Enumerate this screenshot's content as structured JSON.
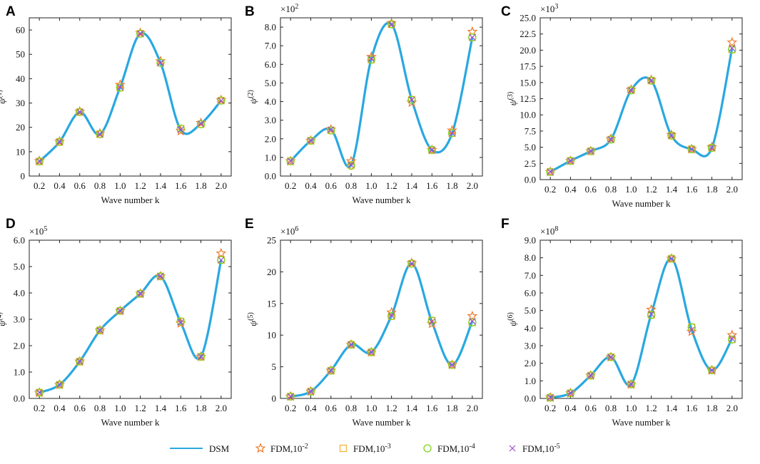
{
  "figure": {
    "legend": [
      {
        "key": "dsm",
        "label": "DSM",
        "symbol": "line",
        "color": "#29a8e0"
      },
      {
        "key": "fdm2",
        "label_base": "FDM,10",
        "label_exp": "-2",
        "symbol": "star",
        "color": "#f07a2a"
      },
      {
        "key": "fdm3",
        "label_base": "FDM,10",
        "label_exp": "-3",
        "symbol": "square",
        "color": "#f2b134"
      },
      {
        "key": "fdm4",
        "label_base": "FDM,10",
        "label_exp": "-4",
        "symbol": "circle",
        "color": "#7ed321"
      },
      {
        "key": "fdm5",
        "label_base": "FDM,10",
        "label_exp": "-5",
        "symbol": "x",
        "color": "#9b4fd0"
      }
    ]
  },
  "chart_data": [
    {
      "panel": "A",
      "type": "line",
      "title": "",
      "xlabel": "Wave number k",
      "ylabel_base": "ψ",
      "ylabel_sup": "(1)",
      "multiplier_base": "",
      "multiplier_exp": "",
      "x": [
        0.2,
        0.4,
        0.6,
        0.8,
        1.0,
        1.2,
        1.4,
        1.6,
        1.8,
        2.0
      ],
      "xlim": [
        0.1,
        2.1
      ],
      "ylim": [
        0,
        65
      ],
      "xticks": [
        0.2,
        0.4,
        0.6,
        0.8,
        1.0,
        1.2,
        1.4,
        1.6,
        1.8,
        2.0
      ],
      "xtick_labels": [
        "0.2",
        "0.4",
        "0.6",
        "0.8",
        "1.0",
        "1.2",
        "1.4",
        "1.6",
        "1.8",
        "2.0"
      ],
      "yticks": [
        0,
        10,
        20,
        30,
        40,
        50,
        60
      ],
      "ytick_labels": [
        "0",
        "10",
        "20",
        "30",
        "40",
        "50",
        "60"
      ],
      "series": [
        {
          "name": "DSM",
          "values": [
            6,
            14,
            26.3,
            17.2,
            36.5,
            58.5,
            46.5,
            19,
            21.5,
            31
          ]
        },
        {
          "name": "FDM,10^-2",
          "values": [
            6.2,
            14.2,
            26.5,
            17.5,
            37.5,
            58.8,
            47.2,
            18.5,
            21.8,
            31.2
          ]
        },
        {
          "name": "FDM,10^-3",
          "values": [
            6,
            14,
            26.3,
            17.2,
            36.3,
            58.5,
            46.5,
            19.5,
            21.3,
            31
          ]
        },
        {
          "name": "FDM,10^-4",
          "values": [
            6,
            14,
            26.3,
            17.2,
            36.3,
            58.5,
            46.5,
            19.5,
            21.3,
            31
          ]
        },
        {
          "name": "FDM,10^-5",
          "values": [
            6,
            14,
            26.3,
            17.2,
            36.5,
            58.5,
            46.5,
            19,
            21.5,
            31
          ]
        }
      ]
    },
    {
      "panel": "B",
      "type": "line",
      "title": "",
      "xlabel": "Wave number k",
      "ylabel_base": "ψ",
      "ylabel_sup": "(2)",
      "multiplier_base": "×10",
      "multiplier_exp": "2",
      "x": [
        0.2,
        0.4,
        0.6,
        0.8,
        1.0,
        1.2,
        1.4,
        1.6,
        1.8,
        2.0
      ],
      "xlim": [
        0.1,
        2.1
      ],
      "ylim": [
        0,
        8.5
      ],
      "xticks": [
        0.2,
        0.4,
        0.6,
        0.8,
        1.0,
        1.2,
        1.4,
        1.6,
        1.8,
        2.0
      ],
      "xtick_labels": [
        "0.2",
        "0.4",
        "0.6",
        "0.8",
        "1.0",
        "1.2",
        "1.4",
        "1.6",
        "1.8",
        "2.0"
      ],
      "yticks": [
        0,
        1,
        2,
        3,
        4,
        5,
        6,
        7,
        8
      ],
      "ytick_labels": [
        "0.0",
        "1.0",
        "2.0",
        "3.0",
        "4.0",
        "5.0",
        "6.0",
        "7.0",
        "8.0"
      ],
      "series": [
        {
          "name": "DSM",
          "values": [
            0.8,
            1.9,
            2.5,
            0.6,
            6.3,
            8.15,
            4.1,
            1.4,
            2.3,
            7.45
          ]
        },
        {
          "name": "FDM,10^-2",
          "values": [
            0.8,
            1.9,
            2.5,
            0.8,
            6.4,
            8.2,
            3.95,
            1.4,
            2.45,
            7.75
          ]
        },
        {
          "name": "FDM,10^-3",
          "values": [
            0.8,
            1.9,
            2.45,
            0.6,
            6.25,
            8.15,
            4.1,
            1.4,
            2.3,
            7.45
          ]
        },
        {
          "name": "FDM,10^-4",
          "values": [
            0.8,
            1.9,
            2.45,
            0.55,
            6.25,
            8.15,
            4.1,
            1.4,
            2.3,
            7.45
          ]
        },
        {
          "name": "FDM,10^-5",
          "values": [
            0.8,
            1.9,
            2.5,
            0.6,
            6.3,
            8.15,
            4.1,
            1.4,
            2.3,
            7.45
          ]
        }
      ]
    },
    {
      "panel": "C",
      "type": "line",
      "title": "",
      "xlabel": "Wave number k",
      "ylabel_base": "ψ",
      "ylabel_sup": "(3)",
      "multiplier_base": "×10",
      "multiplier_exp": "3",
      "x": [
        0.2,
        0.4,
        0.6,
        0.8,
        1.0,
        1.2,
        1.4,
        1.6,
        1.8,
        2.0
      ],
      "xlim": [
        0.1,
        2.1
      ],
      "ylim": [
        0,
        25
      ],
      "xticks": [
        0.2,
        0.4,
        0.6,
        0.8,
        1.0,
        1.2,
        1.4,
        1.6,
        1.8,
        2.0
      ],
      "xtick_labels": [
        "0.2",
        "0.4",
        "0.6",
        "0.8",
        "1.0",
        "1.2",
        "1.4",
        "1.6",
        "1.8",
        "2.0"
      ],
      "yticks": [
        0,
        2.5,
        5,
        7.5,
        10,
        12.5,
        15,
        17.5,
        20,
        22.5,
        25
      ],
      "ytick_labels": [
        "0.0",
        "2.5",
        "5.0",
        "7.5",
        "10.0",
        "12.5",
        "15.0",
        "17.5",
        "20.0",
        "22.5",
        "25.0"
      ],
      "series": [
        {
          "name": "DSM",
          "values": [
            1.2,
            2.9,
            4.4,
            6.2,
            13.8,
            15.3,
            6.8,
            4.7,
            4.9,
            20.3
          ]
        },
        {
          "name": "FDM,10^-2",
          "values": [
            1.2,
            2.9,
            4.4,
            6.3,
            13.9,
            15.4,
            6.9,
            4.7,
            5.0,
            21.2
          ]
        },
        {
          "name": "FDM,10^-3",
          "values": [
            1.2,
            2.9,
            4.4,
            6.2,
            13.8,
            15.3,
            6.8,
            4.7,
            4.9,
            20.1
          ]
        },
        {
          "name": "FDM,10^-4",
          "values": [
            1.2,
            2.9,
            4.4,
            6.2,
            13.8,
            15.3,
            6.8,
            4.7,
            4.9,
            20.1
          ]
        },
        {
          "name": "FDM,10^-5",
          "values": [
            1.2,
            2.9,
            4.4,
            6.2,
            13.8,
            15.3,
            6.8,
            4.7,
            4.9,
            20.3
          ]
        }
      ]
    },
    {
      "panel": "D",
      "type": "line",
      "title": "",
      "xlabel": "Wave number k",
      "ylabel_base": "ψ",
      "ylabel_sup": "(4)",
      "multiplier_base": "×10",
      "multiplier_exp": "5",
      "x": [
        0.2,
        0.4,
        0.6,
        0.8,
        1.0,
        1.2,
        1.4,
        1.6,
        1.8,
        2.0
      ],
      "xlim": [
        0.1,
        2.1
      ],
      "ylim": [
        0,
        6
      ],
      "xticks": [
        0.2,
        0.4,
        0.6,
        0.8,
        1.0,
        1.2,
        1.4,
        1.6,
        1.8,
        2.0
      ],
      "xtick_labels": [
        "0.2",
        "0.4",
        "0.6",
        "0.8",
        "1.0",
        "1.2",
        "1.4",
        "1.6",
        "1.8",
        "2.0"
      ],
      "yticks": [
        0,
        1,
        2,
        3,
        4,
        5,
        6
      ],
      "ytick_labels": [
        "0.0",
        "1.0",
        "2.0",
        "3.0",
        "4.0",
        "5.0",
        "6.0"
      ],
      "series": [
        {
          "name": "DSM",
          "values": [
            0.22,
            0.52,
            1.4,
            2.58,
            3.32,
            3.97,
            4.63,
            2.88,
            1.58,
            5.25
          ]
        },
        {
          "name": "FDM,10^-2",
          "values": [
            0.22,
            0.52,
            1.4,
            2.58,
            3.32,
            3.97,
            4.63,
            2.85,
            1.58,
            5.5
          ]
        },
        {
          "name": "FDM,10^-3",
          "values": [
            0.22,
            0.52,
            1.4,
            2.58,
            3.32,
            3.97,
            4.63,
            2.92,
            1.58,
            5.25
          ]
        },
        {
          "name": "FDM,10^-4",
          "values": [
            0.22,
            0.52,
            1.4,
            2.58,
            3.32,
            3.97,
            4.63,
            2.92,
            1.58,
            5.25
          ]
        },
        {
          "name": "FDM,10^-5",
          "values": [
            0.22,
            0.52,
            1.4,
            2.58,
            3.32,
            3.97,
            4.63,
            2.88,
            1.58,
            5.25
          ]
        }
      ]
    },
    {
      "panel": "E",
      "type": "line",
      "title": "",
      "xlabel": "Wave number k",
      "ylabel_base": "ψ",
      "ylabel_sup": "(5)",
      "multiplier_base": "×10",
      "multiplier_exp": "6",
      "x": [
        0.2,
        0.4,
        0.6,
        0.8,
        1.0,
        1.2,
        1.4,
        1.6,
        1.8,
        2.0
      ],
      "xlim": [
        0.1,
        2.1
      ],
      "ylim": [
        0,
        25
      ],
      "xticks": [
        0.2,
        0.4,
        0.6,
        0.8,
        1.0,
        1.2,
        1.4,
        1.6,
        1.8,
        2.0
      ],
      "xtick_labels": [
        "0.2",
        "0.4",
        "0.6",
        "0.8",
        "1.0",
        "1.2",
        "1.4",
        "1.6",
        "1.8",
        "2.0"
      ],
      "yticks": [
        0,
        5,
        10,
        15,
        20,
        25
      ],
      "ytick_labels": [
        "0",
        "5",
        "10",
        "15",
        "20",
        "25"
      ],
      "series": [
        {
          "name": "DSM",
          "values": [
            0.3,
            1.1,
            4.4,
            8.5,
            7.3,
            13.1,
            21.3,
            12.1,
            5.3,
            12.2
          ]
        },
        {
          "name": "FDM,10^-2",
          "values": [
            0.3,
            1.1,
            4.4,
            8.5,
            7.3,
            13.6,
            21.4,
            11.8,
            5.3,
            13.0
          ]
        },
        {
          "name": "FDM,10^-3",
          "values": [
            0.3,
            1.1,
            4.4,
            8.5,
            7.3,
            13.0,
            21.3,
            12.3,
            5.3,
            12.0
          ]
        },
        {
          "name": "FDM,10^-4",
          "values": [
            0.3,
            1.1,
            4.4,
            8.5,
            7.3,
            13.0,
            21.3,
            12.3,
            5.3,
            12.0
          ]
        },
        {
          "name": "FDM,10^-5",
          "values": [
            0.3,
            1.1,
            4.4,
            8.5,
            7.3,
            13.1,
            21.3,
            12.1,
            5.3,
            12.2
          ]
        }
      ]
    },
    {
      "panel": "F",
      "type": "line",
      "title": "",
      "xlabel": "Wave number k",
      "ylabel_base": "ψ",
      "ylabel_sup": "(6)",
      "multiplier_base": "×10",
      "multiplier_exp": "8",
      "x": [
        0.2,
        0.4,
        0.6,
        0.8,
        1.0,
        1.2,
        1.4,
        1.6,
        1.8,
        2.0
      ],
      "xlim": [
        0.1,
        2.1
      ],
      "ylim": [
        0,
        9
      ],
      "xticks": [
        0.2,
        0.4,
        0.6,
        0.8,
        1.0,
        1.2,
        1.4,
        1.6,
        1.8,
        2.0
      ],
      "xtick_labels": [
        "0.2",
        "0.4",
        "0.6",
        "0.8",
        "1.0",
        "1.2",
        "1.4",
        "1.6",
        "1.8",
        "2.0"
      ],
      "yticks": [
        0,
        1,
        2,
        3,
        4,
        5,
        6,
        7,
        8,
        9
      ],
      "ytick_labels": [
        "0.0",
        "1.0",
        "2.0",
        "3.0",
        "4.0",
        "5.0",
        "6.0",
        "7.0",
        "8.0",
        "9.0"
      ],
      "series": [
        {
          "name": "DSM",
          "values": [
            0.05,
            0.3,
            1.3,
            2.35,
            0.8,
            4.8,
            7.95,
            3.9,
            1.6,
            3.4
          ]
        },
        {
          "name": "FDM,10^-2",
          "values": [
            0.05,
            0.3,
            1.3,
            2.35,
            0.8,
            5.05,
            7.95,
            3.8,
            1.6,
            3.6
          ]
        },
        {
          "name": "FDM,10^-3",
          "values": [
            0.05,
            0.3,
            1.3,
            2.35,
            0.8,
            4.75,
            7.95,
            4.05,
            1.6,
            3.35
          ]
        },
        {
          "name": "FDM,10^-4",
          "values": [
            0.05,
            0.3,
            1.3,
            2.35,
            0.8,
            4.75,
            7.95,
            4.05,
            1.6,
            3.35
          ]
        },
        {
          "name": "FDM,10^-5",
          "values": [
            0.05,
            0.3,
            1.3,
            2.35,
            0.8,
            4.8,
            7.95,
            3.9,
            1.6,
            3.4
          ]
        }
      ]
    }
  ]
}
